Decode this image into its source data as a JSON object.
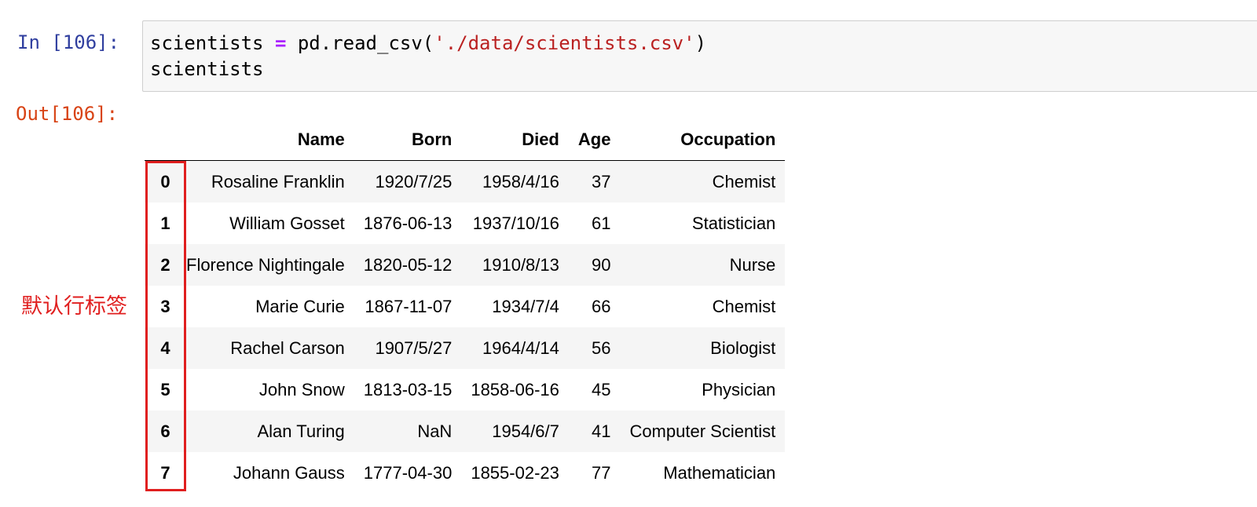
{
  "cell": {
    "in_prompt": "In [106]:",
    "out_prompt": "Out[106]:",
    "code": {
      "line1": {
        "var": "scientists ",
        "op": "=",
        "call": " pd.read_csv(",
        "str": "'./data/scientists.csv'",
        "close": ")"
      },
      "line2": "scientists"
    }
  },
  "table": {
    "index_header": "",
    "columns": [
      "Name",
      "Born",
      "Died",
      "Age",
      "Occupation"
    ],
    "rows": [
      {
        "index": "0",
        "Name": "Rosaline Franklin",
        "Born": "1920/7/25",
        "Died": "1958/4/16",
        "Age": "37",
        "Occupation": "Chemist"
      },
      {
        "index": "1",
        "Name": "William Gosset",
        "Born": "1876-06-13",
        "Died": "1937/10/16",
        "Age": "61",
        "Occupation": "Statistician"
      },
      {
        "index": "2",
        "Name": "Florence Nightingale",
        "Born": "1820-05-12",
        "Died": "1910/8/13",
        "Age": "90",
        "Occupation": "Nurse"
      },
      {
        "index": "3",
        "Name": "Marie Curie",
        "Born": "1867-11-07",
        "Died": "1934/7/4",
        "Age": "66",
        "Occupation": "Chemist"
      },
      {
        "index": "4",
        "Name": "Rachel Carson",
        "Born": "1907/5/27",
        "Died": "1964/4/14",
        "Age": "56",
        "Occupation": "Biologist"
      },
      {
        "index": "5",
        "Name": "John Snow",
        "Born": "1813-03-15",
        "Died": "1858-06-16",
        "Age": "45",
        "Occupation": "Physician"
      },
      {
        "index": "6",
        "Name": "Alan Turing",
        "Born": "NaN",
        "Died": "1954/6/7",
        "Age": "41",
        "Occupation": "Computer Scientist"
      },
      {
        "index": "7",
        "Name": "Johann Gauss",
        "Born": "1777-04-30",
        "Died": "1855-02-23",
        "Age": "77",
        "Occupation": "Mathematician"
      }
    ]
  },
  "annotation": {
    "text": "默认行标签",
    "color": "#e01f1f"
  },
  "colors": {
    "in_prompt": "#303f9f",
    "out_prompt": "#d84315",
    "code_bg": "#f7f7f7",
    "operator": "#aa22ff",
    "string": "#ba2121"
  }
}
